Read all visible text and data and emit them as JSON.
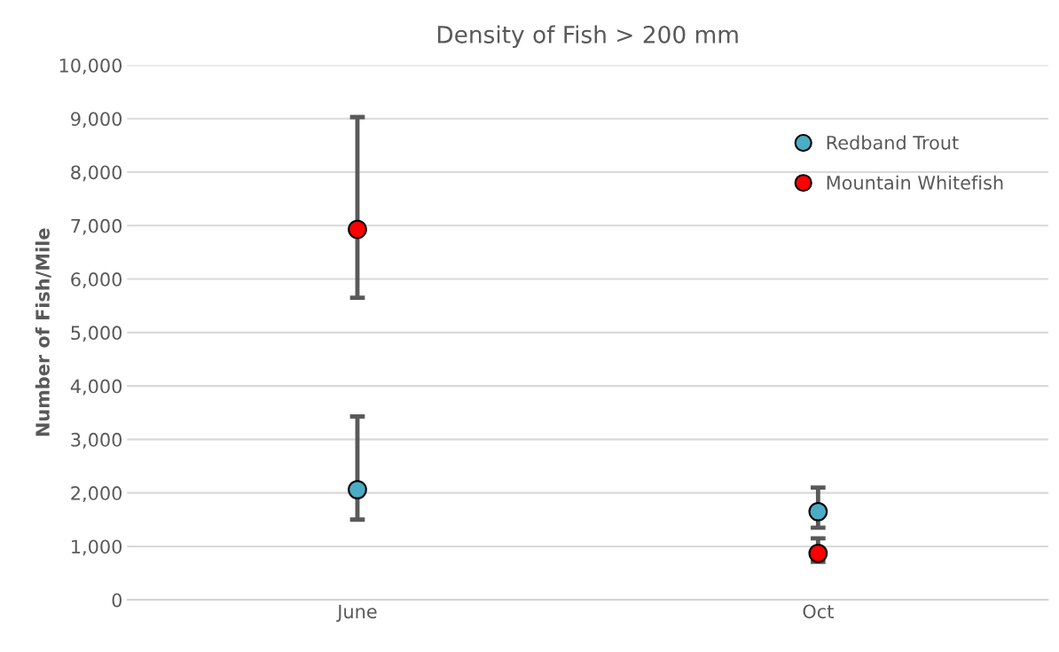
{
  "chart_data": {
    "type": "scatter",
    "title": "Density of Fish > 200 mm",
    "ylabel": "Number of Fish/Mile",
    "categories": [
      "June",
      "Oct"
    ],
    "series": [
      {
        "name": "Redband Trout",
        "color": "#4bacc6",
        "values": [
          2060,
          1650
        ],
        "errors": [
          [
            1500,
            3430
          ],
          [
            1350,
            2100
          ]
        ]
      },
      {
        "name": "Mountain Whitefish",
        "color": "#ff0000",
        "values": [
          6930,
          870
        ],
        "errors": [
          [
            5650,
            9030
          ],
          [
            710,
            1150
          ]
        ]
      }
    ],
    "ylim": [
      0,
      10000
    ],
    "yticks": [
      0,
      {
        "value": 1000,
        "label": "1,000"
      },
      {
        "value": 2000,
        "label": "2,000"
      },
      {
        "value": 3000,
        "label": "3,000"
      },
      {
        "value": 4000,
        "label": "4,000"
      },
      {
        "value": 5000,
        "label": "5,000"
      },
      {
        "value": 6000,
        "label": "6,000"
      },
      {
        "value": 7000,
        "label": "7,000"
      },
      {
        "value": 8000,
        "label": "8,000"
      },
      {
        "value": 9000,
        "label": "9,000"
      },
      {
        "value": 10000,
        "label": "10,000"
      }
    ],
    "grid": "y",
    "legend": "top right",
    "marker": "circle"
  }
}
